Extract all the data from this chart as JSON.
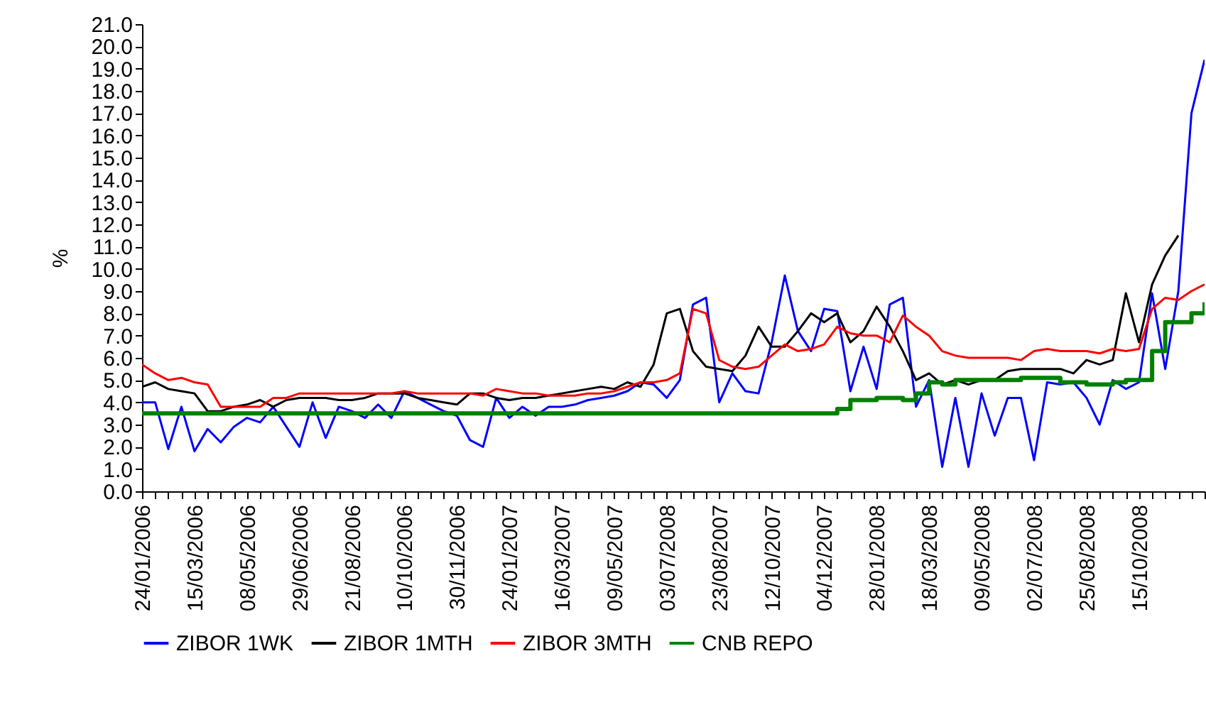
{
  "chart_data": {
    "type": "line",
    "ylabel": "%",
    "categories": [
      "24/01/2006",
      null,
      null,
      null,
      "15/03/2006",
      null,
      null,
      null,
      "08/05/2006",
      null,
      null,
      null,
      "29/06/2006",
      null,
      null,
      null,
      "21/08/2006",
      null,
      null,
      null,
      "10/10/2006",
      null,
      null,
      null,
      "30/11/2006",
      null,
      null,
      null,
      "24/01/2007",
      null,
      null,
      null,
      "16/03/2007",
      null,
      null,
      null,
      "09/05/2007",
      null,
      null,
      null,
      "03/07/2008",
      null,
      null,
      null,
      "23/08/2007",
      null,
      null,
      null,
      "12/10/2007",
      null,
      null,
      null,
      "04/12/2007",
      null,
      null,
      null,
      "28/01/2008",
      null,
      null,
      null,
      "18/03/2008",
      null,
      null,
      null,
      "09/05/2008",
      null,
      null,
      null,
      "02/07/2008",
      null,
      null,
      null,
      "25/08/2008",
      null,
      null,
      null,
      "15/10/2008",
      null,
      null,
      null,
      null,
      null
    ],
    "series": [
      {
        "name": "ZIBOR 1WK",
        "color": "#0000ff",
        "values": [
          4.0,
          4.0,
          1.9,
          3.8,
          1.8,
          2.8,
          2.2,
          2.9,
          3.3,
          3.1,
          3.8,
          2.9,
          2.0,
          4.0,
          2.4,
          3.8,
          3.6,
          3.3,
          3.9,
          3.3,
          4.5,
          4.2,
          3.9,
          3.6,
          3.4,
          2.3,
          2.0,
          4.2,
          3.3,
          3.8,
          3.4,
          3.8,
          3.8,
          3.9,
          4.1,
          4.2,
          4.3,
          4.5,
          4.9,
          4.8,
          4.2,
          5.0,
          8.4,
          8.7,
          4.0,
          5.3,
          4.5,
          4.4,
          6.7,
          9.7,
          7.2,
          6.3,
          8.2,
          8.1,
          4.5,
          6.5,
          4.6,
          8.4,
          8.7,
          3.8,
          5.0,
          1.1,
          4.2,
          1.1,
          4.4,
          2.5,
          4.2,
          4.2,
          1.4,
          4.9,
          4.8,
          4.9,
          4.2,
          3.0,
          5.0,
          4.6,
          4.9,
          8.9,
          5.5,
          9.0,
          17.0,
          19.4
        ]
      },
      {
        "name": "ZIBOR 1MTH",
        "color": "#000000",
        "values": [
          4.7,
          4.9,
          4.6,
          4.5,
          4.4,
          3.6,
          3.6,
          3.8,
          3.9,
          4.1,
          3.8,
          4.1,
          4.2,
          4.2,
          4.2,
          4.1,
          4.1,
          4.2,
          4.4,
          4.4,
          4.4,
          4.2,
          4.1,
          4.0,
          3.9,
          4.4,
          4.4,
          4.2,
          4.1,
          4.2,
          4.2,
          4.3,
          4.4,
          4.5,
          4.6,
          4.7,
          4.6,
          4.9,
          4.7,
          5.7,
          8.0,
          8.2,
          6.3,
          5.6,
          5.5,
          5.4,
          6.1,
          7.4,
          6.5,
          6.5,
          7.2,
          8.0,
          7.6,
          8.0,
          6.7,
          7.2,
          8.3,
          7.4,
          6.3,
          5.0,
          5.3,
          4.8,
          5.0,
          4.8,
          5.0,
          5.0,
          5.4,
          5.5,
          5.5,
          5.5,
          5.5,
          5.3,
          5.9,
          5.7,
          5.9,
          8.9,
          6.7,
          9.3,
          10.6,
          11.5,
          null,
          null
        ]
      },
      {
        "name": "ZIBOR 3MTH",
        "color": "#ff0000",
        "values": [
          5.7,
          5.3,
          5.0,
          5.1,
          4.9,
          4.8,
          3.8,
          3.8,
          3.8,
          3.8,
          4.2,
          4.2,
          4.4,
          4.4,
          4.4,
          4.4,
          4.4,
          4.4,
          4.4,
          4.4,
          4.5,
          4.4,
          4.4,
          4.4,
          4.4,
          4.4,
          4.3,
          4.6,
          4.5,
          4.4,
          4.4,
          4.3,
          4.3,
          4.3,
          4.4,
          4.4,
          4.5,
          4.7,
          4.9,
          4.9,
          5.0,
          5.3,
          8.2,
          8.0,
          5.9,
          5.6,
          5.5,
          5.6,
          6.1,
          6.6,
          6.3,
          6.4,
          6.6,
          7.4,
          7.1,
          7.0,
          7.0,
          6.7,
          7.9,
          7.4,
          7.0,
          6.3,
          6.1,
          6.0,
          6.0,
          6.0,
          6.0,
          5.9,
          6.3,
          6.4,
          6.3,
          6.3,
          6.3,
          6.2,
          6.4,
          6.3,
          6.4,
          8.2,
          8.7,
          8.6,
          9.0,
          9.3
        ]
      },
      {
        "name": "CNB REPO",
        "color": "#008000",
        "type": "step",
        "values": [
          3.5,
          3.5,
          3.5,
          3.5,
          3.5,
          3.5,
          3.5,
          3.5,
          3.5,
          3.5,
          3.5,
          3.5,
          3.5,
          3.5,
          3.5,
          3.5,
          3.5,
          3.5,
          3.5,
          3.5,
          3.5,
          3.5,
          3.5,
          3.5,
          3.5,
          3.5,
          3.5,
          3.5,
          3.5,
          3.5,
          3.5,
          3.5,
          3.5,
          3.5,
          3.5,
          3.5,
          3.5,
          3.5,
          3.5,
          3.5,
          3.5,
          3.5,
          3.5,
          3.5,
          3.5,
          3.5,
          3.5,
          3.5,
          3.5,
          3.5,
          3.5,
          3.5,
          3.5,
          3.7,
          4.1,
          4.1,
          4.2,
          4.2,
          4.1,
          4.4,
          4.9,
          4.8,
          5.0,
          5.0,
          5.0,
          5.0,
          5.0,
          5.1,
          5.1,
          5.1,
          4.9,
          4.9,
          4.8,
          4.8,
          4.9,
          5.0,
          5.0,
          6.3,
          7.6,
          7.6,
          8.0,
          8.5
        ]
      }
    ],
    "ylim": [
      0,
      21
    ],
    "yticks": [
      {
        "value": 0,
        "label": "0.0"
      },
      {
        "value": 1,
        "label": "1.0"
      },
      {
        "value": 2,
        "label": "2.0"
      },
      {
        "value": 3,
        "label": "3.0"
      },
      {
        "value": 4,
        "label": "4.0"
      },
      {
        "value": 5,
        "label": "5.0"
      },
      {
        "value": 6,
        "label": "6.0"
      },
      {
        "value": 7,
        "label": "7.0"
      },
      {
        "value": 8,
        "label": "8.0"
      },
      {
        "value": 9,
        "label": "9.0"
      },
      {
        "value": 10,
        "label": "10.0"
      },
      {
        "value": 11,
        "label": "11.0"
      },
      {
        "value": 12,
        "label": "12.0"
      },
      {
        "value": 13,
        "label": "13.0"
      },
      {
        "value": 14,
        "label": "14.0"
      },
      {
        "value": 15,
        "label": "15.0"
      },
      {
        "value": 16,
        "label": "16.0"
      },
      {
        "value": 17,
        "label": "17.0"
      },
      {
        "value": 18,
        "label": "18.0"
      },
      {
        "value": 19,
        "label": "19.0"
      },
      {
        "value": 20,
        "label": "20.0"
      },
      {
        "value": 21,
        "label": "21.0"
      }
    ],
    "grid": false,
    "legend": "bottom"
  }
}
